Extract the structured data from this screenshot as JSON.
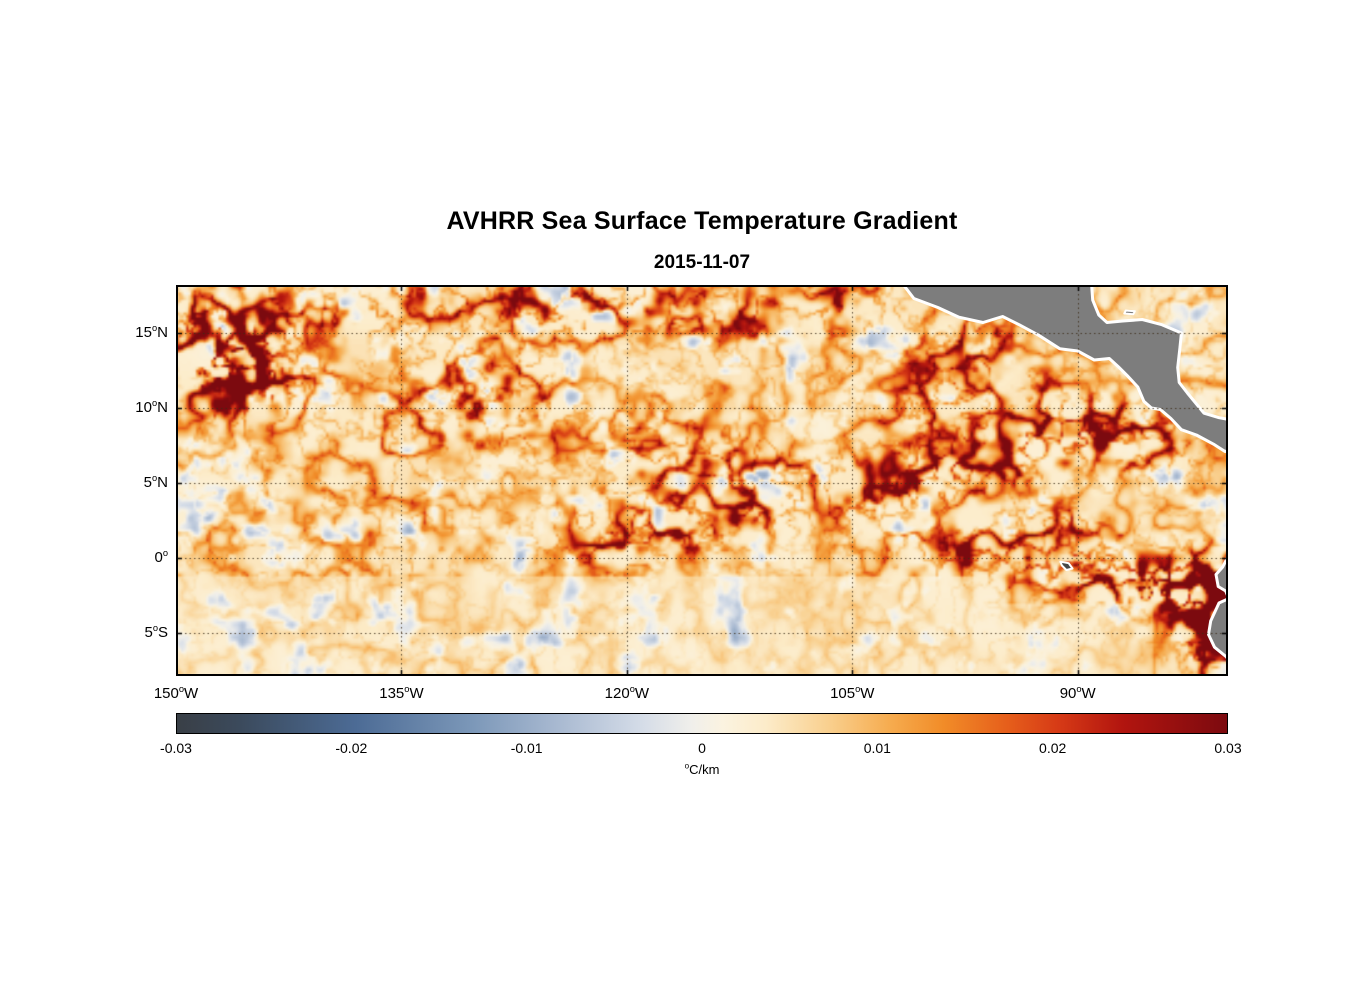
{
  "chart_data": {
    "type": "heatmap",
    "title": "AVHRR Sea Surface Temperature Gradient",
    "subtitle": "2015-11-07",
    "x_axis": {
      "range": [
        -150,
        -80
      ],
      "ticks": [
        {
          "value": -150,
          "num": "150",
          "sup": "o",
          "hem": "W"
        },
        {
          "value": -135,
          "num": "135",
          "sup": "o",
          "hem": "W"
        },
        {
          "value": -120,
          "num": "120",
          "sup": "o",
          "hem": "W"
        },
        {
          "value": -105,
          "num": "105",
          "sup": "o",
          "hem": "W"
        },
        {
          "value": -90,
          "num": "90",
          "sup": "o",
          "hem": "W"
        }
      ]
    },
    "y_axis": {
      "range": [
        -7.87,
        18.2
      ],
      "ticks": [
        {
          "value": 15,
          "num": "15",
          "sup": "o",
          "hem": "N"
        },
        {
          "value": 10,
          "num": "10",
          "sup": "o",
          "hem": "N"
        },
        {
          "value": 5,
          "num": "5",
          "sup": "o",
          "hem": "N"
        },
        {
          "value": 0,
          "num": "0",
          "sup": "o",
          "hem": ""
        },
        {
          "value": -5,
          "num": "5",
          "sup": "o",
          "hem": "S"
        }
      ]
    },
    "grid": {
      "style": "dotted",
      "color": "rgba(60,45,25,0.85)"
    },
    "colorbar": {
      "orientation": "horizontal",
      "min": -0.03,
      "max": 0.03,
      "unit": "°C/km",
      "unit_sup": "o",
      "unit_main": "C/km",
      "ticks": [
        {
          "value": -0.03,
          "label": "-0.03"
        },
        {
          "value": -0.02,
          "label": "-0.02"
        },
        {
          "value": -0.01,
          "label": "-0.01"
        },
        {
          "value": 0,
          "label": "0"
        },
        {
          "value": 0.01,
          "label": "0.01"
        },
        {
          "value": 0.02,
          "label": "0.02"
        },
        {
          "value": 0.03,
          "label": "0.03"
        }
      ],
      "stops": [
        {
          "t": 0.0,
          "color": "#393f46"
        },
        {
          "t": 0.06,
          "color": "#3b4a5c"
        },
        {
          "t": 0.17,
          "color": "#4c6b95"
        },
        {
          "t": 0.28,
          "color": "#7b97b8"
        },
        {
          "t": 0.36,
          "color": "#a7b8d0"
        },
        {
          "t": 0.44,
          "color": "#d3dbe7"
        },
        {
          "t": 0.49,
          "color": "#f0efeb"
        },
        {
          "t": 0.52,
          "color": "#fbf3e0"
        },
        {
          "t": 0.56,
          "color": "#fcecca"
        },
        {
          "t": 0.62,
          "color": "#f9d08f"
        },
        {
          "t": 0.68,
          "color": "#f6ab4e"
        },
        {
          "t": 0.73,
          "color": "#f18c28"
        },
        {
          "t": 0.79,
          "color": "#e65f1b"
        },
        {
          "t": 0.84,
          "color": "#d63a16"
        },
        {
          "t": 0.9,
          "color": "#b2150f"
        },
        {
          "t": 1.0,
          "color": "#7c0a0f"
        }
      ]
    },
    "map": {
      "land_color": "#7d7d7d",
      "island_color": "#474747",
      "coast_halo_color": "#ffffff",
      "ocean_base_color": "#fcecca",
      "land_polygons": {
        "central_america": [
          [
            -101.9,
            18.6
          ],
          [
            -100.9,
            17.3
          ],
          [
            -99.3,
            16.7
          ],
          [
            -97.9,
            16.05
          ],
          [
            -96.3,
            15.7
          ],
          [
            -95.0,
            16.1
          ],
          [
            -93.9,
            15.55
          ],
          [
            -92.6,
            14.85
          ],
          [
            -91.2,
            13.95
          ],
          [
            -90.0,
            13.8
          ],
          [
            -88.9,
            13.2
          ],
          [
            -87.9,
            13.3
          ],
          [
            -87.3,
            12.75
          ],
          [
            -86.7,
            12.15
          ],
          [
            -86.0,
            11.4
          ],
          [
            -85.6,
            10.45
          ],
          [
            -85.1,
            10.0
          ],
          [
            -84.5,
            9.9
          ],
          [
            -83.8,
            9.3
          ],
          [
            -83.1,
            8.55
          ],
          [
            -82.1,
            8.2
          ],
          [
            -80.9,
            7.55
          ],
          [
            -80.2,
            7.1
          ],
          [
            -79.2,
            7.35
          ],
          [
            -79.2,
            9.1
          ],
          [
            -80.6,
            9.35
          ],
          [
            -81.6,
            9.65
          ],
          [
            -82.7,
            11.0
          ],
          [
            -83.25,
            11.7
          ],
          [
            -83.35,
            12.7
          ],
          [
            -83.2,
            14.0
          ],
          [
            -83.1,
            15.0
          ],
          [
            -84.4,
            15.55
          ],
          [
            -85.7,
            15.9
          ],
          [
            -87.0,
            15.8
          ],
          [
            -88.05,
            15.7
          ],
          [
            -88.6,
            16.2
          ],
          [
            -89.0,
            17.2
          ],
          [
            -89.1,
            18.6
          ]
        ],
        "south_america": [
          [
            -79.2,
            0.9
          ],
          [
            -80.0,
            0.1
          ],
          [
            -80.35,
            -0.6
          ],
          [
            -80.8,
            -1.1
          ],
          [
            -80.65,
            -1.9
          ],
          [
            -80.15,
            -2.2
          ],
          [
            -79.95,
            -2.7
          ],
          [
            -80.6,
            -3.0
          ],
          [
            -81.15,
            -4.2
          ],
          [
            -81.3,
            -5.1
          ],
          [
            -80.9,
            -5.95
          ],
          [
            -80.1,
            -6.6
          ],
          [
            -79.7,
            -7.2
          ],
          [
            -79.4,
            -7.7
          ],
          [
            -79.2,
            -8.2
          ]
        ],
        "galapagos": [
          [
            -91.15,
            -0.25
          ],
          [
            -90.6,
            -0.35
          ],
          [
            -90.35,
            -0.7
          ],
          [
            -90.75,
            -0.8
          ],
          [
            -91.05,
            -0.5
          ]
        ],
        "bay_islands": [
          [
            -86.9,
            16.3
          ],
          [
            -86.3,
            16.25
          ],
          [
            -86.2,
            16.45
          ],
          [
            -86.8,
            16.5
          ]
        ]
      },
      "frontal_features": [
        {
          "name": "west-eddy-core",
          "lon": -147.3,
          "lat": 12.8,
          "rx": 2.4,
          "ry": 2.0,
          "strength": 1.7
        },
        {
          "name": "west-eddy-arm",
          "lon": -144.2,
          "lat": 11.8,
          "rx": 2.0,
          "ry": 1.6,
          "strength": 1.1
        },
        {
          "name": "west-itcz-band",
          "lon": -146.0,
          "lat": 15.2,
          "rx": 3.0,
          "ry": 1.2,
          "strength": 0.7
        },
        {
          "name": "itcz-band-1",
          "lon": -137.0,
          "lat": 16.6,
          "rx": 5.0,
          "ry": 1.4,
          "strength": 0.65
        },
        {
          "name": "itcz-band-2",
          "lon": -122.5,
          "lat": 16.8,
          "rx": 4.5,
          "ry": 1.4,
          "strength": 0.8
        },
        {
          "name": "itcz-band-3",
          "lon": -112.5,
          "lat": 16.3,
          "rx": 2.2,
          "ry": 1.2,
          "strength": 0.5
        },
        {
          "name": "itcz-band-4",
          "lon": -105.8,
          "lat": 17.0,
          "rx": 2.0,
          "ry": 1.2,
          "strength": 0.7
        },
        {
          "name": "northwest-swirls",
          "lon": -131.0,
          "lat": 11.3,
          "rx": 3.0,
          "ry": 2.2,
          "strength": 0.5
        },
        {
          "name": "west-swirls-2",
          "lon": -127.0,
          "lat": 9.3,
          "rx": 2.6,
          "ry": 2.0,
          "strength": 0.45
        },
        {
          "name": "central-swirls",
          "lon": -117.0,
          "lat": 6.6,
          "rx": 3.5,
          "ry": 2.2,
          "strength": 0.5
        },
        {
          "name": "central-swirls-2",
          "lon": -110.8,
          "lat": 5.0,
          "rx": 2.4,
          "ry": 1.6,
          "strength": 0.55
        },
        {
          "name": "eq-front-central",
          "lon": -121.0,
          "lat": 1.2,
          "rx": 3.2,
          "ry": 1.2,
          "strength": 0.85
        },
        {
          "name": "eq-front-central-2",
          "lon": -116.0,
          "lat": 2.3,
          "rx": 2.4,
          "ry": 1.1,
          "strength": 0.6
        },
        {
          "name": "eq-front-central-3",
          "lon": -112.0,
          "lat": 3.2,
          "rx": 2.0,
          "ry": 1.0,
          "strength": 0.55
        },
        {
          "name": "tehuantepec-front",
          "lon": -96.8,
          "lat": 14.6,
          "rx": 1.8,
          "ry": 1.2,
          "strength": 0.55
        },
        {
          "name": "papagayo-band-1",
          "lon": -104.0,
          "lat": 4.3,
          "rx": 2.4,
          "ry": 1.2,
          "strength": 0.7
        },
        {
          "name": "papagayo-band-2",
          "lon": -99.8,
          "lat": 5.6,
          "rx": 2.4,
          "ry": 1.2,
          "strength": 0.8
        },
        {
          "name": "papagayo-band-3",
          "lon": -95.8,
          "lat": 6.6,
          "rx": 2.4,
          "ry": 1.2,
          "strength": 0.85
        },
        {
          "name": "papagayo-band-4",
          "lon": -91.8,
          "lat": 7.9,
          "rx": 2.4,
          "ry": 1.2,
          "strength": 0.9
        },
        {
          "name": "costa-rica-dome",
          "lon": -88.6,
          "lat": 8.8,
          "rx": 1.8,
          "ry": 1.2,
          "strength": 0.85
        },
        {
          "name": "panama-bight",
          "lon": -85.0,
          "lat": 7.6,
          "rx": 1.8,
          "ry": 1.4,
          "strength": 0.6
        },
        {
          "name": "mexico-offshore",
          "lon": -98.6,
          "lat": 11.4,
          "rx": 2.4,
          "ry": 1.8,
          "strength": 0.5
        },
        {
          "name": "guat-offshore",
          "lon": -93.0,
          "lat": 10.6,
          "rx": 2.0,
          "ry": 1.5,
          "strength": 0.45
        },
        {
          "name": "eq-front-east-1",
          "lon": -97.0,
          "lat": 0.4,
          "rx": 2.4,
          "ry": 1.0,
          "strength": 0.7
        },
        {
          "name": "eq-front-east-2",
          "lon": -93.0,
          "lat": -0.2,
          "rx": 2.4,
          "ry": 1.0,
          "strength": 0.75
        },
        {
          "name": "galapagos-front",
          "lon": -89.5,
          "lat": -0.7,
          "rx": 2.0,
          "ry": 1.0,
          "strength": 0.9
        },
        {
          "name": "nino-front-1",
          "lon": -86.0,
          "lat": -1.4,
          "rx": 2.2,
          "ry": 1.1,
          "strength": 1.1
        },
        {
          "name": "nino-front-2",
          "lon": -83.0,
          "lat": -2.2,
          "rx": 2.2,
          "ry": 1.2,
          "strength": 1.4
        },
        {
          "name": "peru-coastal-1",
          "lon": -80.6,
          "lat": -3.6,
          "rx": 1.8,
          "ry": 1.8,
          "strength": 1.5
        },
        {
          "name": "peru-coastal-2",
          "lon": -81.0,
          "lat": -5.6,
          "rx": 1.5,
          "ry": 2.0,
          "strength": 1.2
        },
        {
          "name": "ecuador-front",
          "lon": -82.3,
          "lat": -0.4,
          "rx": 1.6,
          "ry": 1.0,
          "strength": 0.7
        },
        {
          "name": "n-galapagos-band",
          "lon": -91.5,
          "lat": 2.2,
          "rx": 2.6,
          "ry": 1.0,
          "strength": 0.5
        }
      ]
    }
  }
}
